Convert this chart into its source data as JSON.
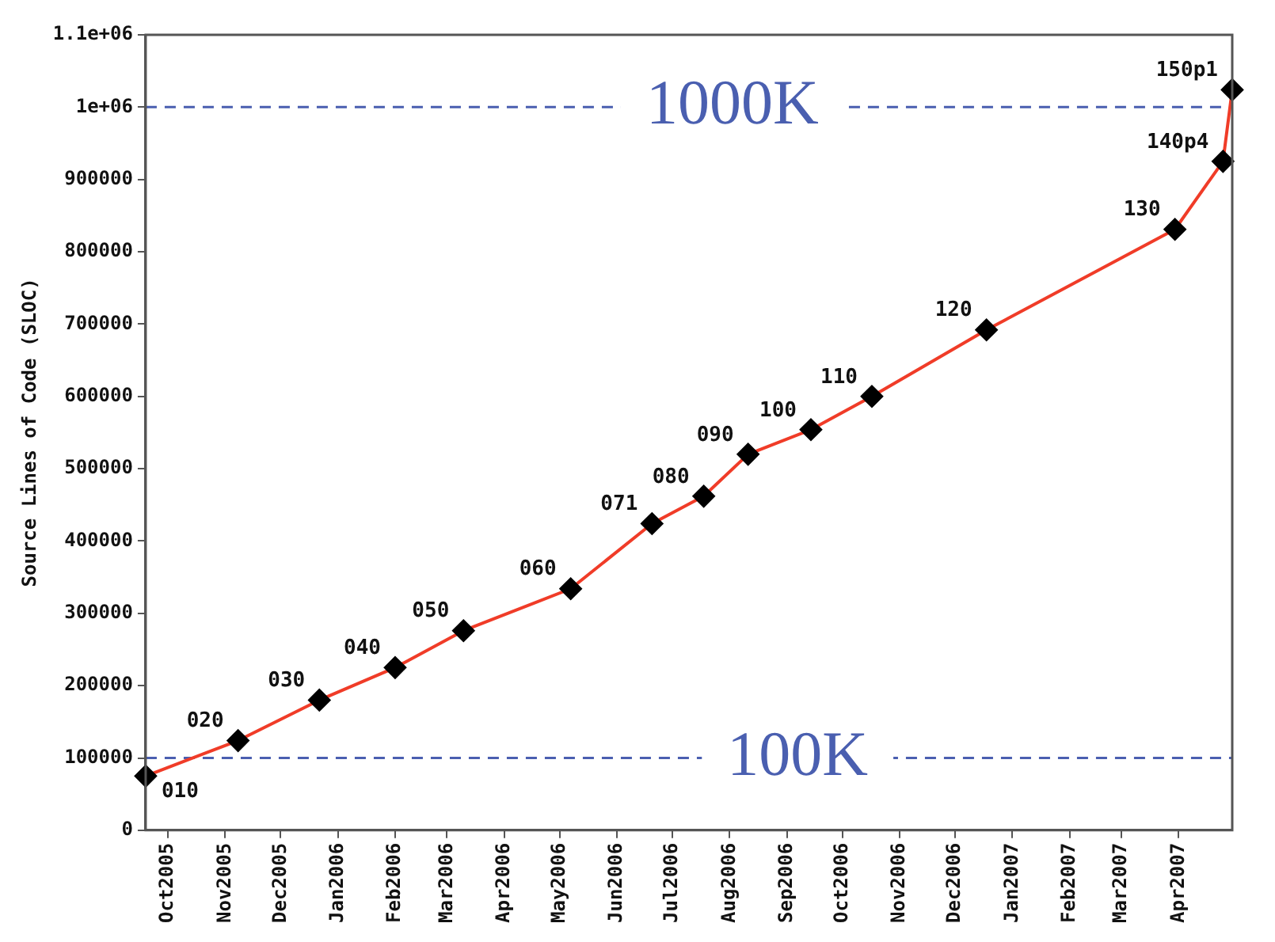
{
  "chart_data": {
    "type": "line",
    "ylabel": "Source Lines of Code (SLOC)",
    "x": [
      "2005-09-19",
      "2005-11-08",
      "2005-12-22",
      "2006-02-01",
      "2006-03-10",
      "2006-05-07",
      "2006-06-20",
      "2006-07-18",
      "2006-08-11",
      "2006-09-14",
      "2006-10-17",
      "2006-12-18",
      "2007-03-30",
      "2007-04-25",
      "2007-04-30"
    ],
    "series": [
      {
        "color": "#f03c28",
        "values": [
          75000,
          124000,
          180000,
          225000,
          276000,
          334000,
          424000,
          462000,
          520000,
          554000,
          600000,
          692000,
          831000,
          925000,
          1024000
        ]
      }
    ],
    "xlim": [
      "2005-09-19",
      "2007-04-30"
    ],
    "xticks": [
      {
        "value": "2005-10-01",
        "label": "Oct2005"
      },
      {
        "value": "2005-11-01",
        "label": "Nov2005"
      },
      {
        "value": "2005-12-01",
        "label": "Dec2005"
      },
      {
        "value": "2006-01-01",
        "label": "Jan2006"
      },
      {
        "value": "2006-02-01",
        "label": "Feb2006"
      },
      {
        "value": "2006-03-01",
        "label": "Mar2006"
      },
      {
        "value": "2006-04-01",
        "label": "Apr2006"
      },
      {
        "value": "2006-05-01",
        "label": "May2006"
      },
      {
        "value": "2006-06-01",
        "label": "Jun2006"
      },
      {
        "value": "2006-07-01",
        "label": "Jul2006"
      },
      {
        "value": "2006-08-01",
        "label": "Aug2006"
      },
      {
        "value": "2006-09-01",
        "label": "Sep2006"
      },
      {
        "value": "2006-10-01",
        "label": "Oct2006"
      },
      {
        "value": "2006-11-01",
        "label": "Nov2006"
      },
      {
        "value": "2006-12-01",
        "label": "Dec2006"
      },
      {
        "value": "2007-01-01",
        "label": "Jan2007"
      },
      {
        "value": "2007-02-01",
        "label": "Feb2007"
      },
      {
        "value": "2007-03-01",
        "label": "Mar2007"
      },
      {
        "value": "2007-04-01",
        "label": "Apr2007"
      }
    ],
    "ylim": [
      0,
      1100000
    ],
    "yticks": [
      0,
      100000,
      200000,
      300000,
      400000,
      500000,
      600000,
      700000,
      800000,
      900000,
      {
        "value": 1000000,
        "label": "1e+06"
      },
      {
        "value": 1100000,
        "label": "1.1e+06"
      }
    ],
    "marker": "diamond",
    "line_style": "solid",
    "grid": false,
    "legend": false,
    "ref_lines": [
      {
        "axis": "y",
        "value": 100000,
        "label": "100K",
        "color": "#4a5fb0",
        "line_style": "dashed"
      },
      {
        "axis": "y",
        "value": 1000000,
        "label": "1000K",
        "color": "#4a5fb0",
        "line_style": "dashed"
      }
    ],
    "annotations": [
      {
        "text": "010",
        "x": "2005-09-19",
        "y": 75000
      },
      {
        "text": "020",
        "x": "2005-11-08",
        "y": 124000
      },
      {
        "text": "030",
        "x": "2005-12-22",
        "y": 180000
      },
      {
        "text": "040",
        "x": "2006-02-01",
        "y": 225000
      },
      {
        "text": "050",
        "x": "2006-03-10",
        "y": 276000
      },
      {
        "text": "060",
        "x": "2006-05-07",
        "y": 334000
      },
      {
        "text": "071",
        "x": "2006-06-20",
        "y": 424000
      },
      {
        "text": "080",
        "x": "2006-07-18",
        "y": 462000
      },
      {
        "text": "090",
        "x": "2006-08-11",
        "y": 520000
      },
      {
        "text": "100",
        "x": "2006-09-14",
        "y": 554000
      },
      {
        "text": "110",
        "x": "2006-10-17",
        "y": 600000
      },
      {
        "text": "120",
        "x": "2006-12-18",
        "y": 692000
      },
      {
        "text": "130",
        "x": "2007-03-30",
        "y": 831000
      },
      {
        "text": "140p4",
        "x": "2007-04-25",
        "y": 925000
      },
      {
        "text": "150p1",
        "x": "2007-04-30",
        "y": 1024000
      }
    ]
  }
}
